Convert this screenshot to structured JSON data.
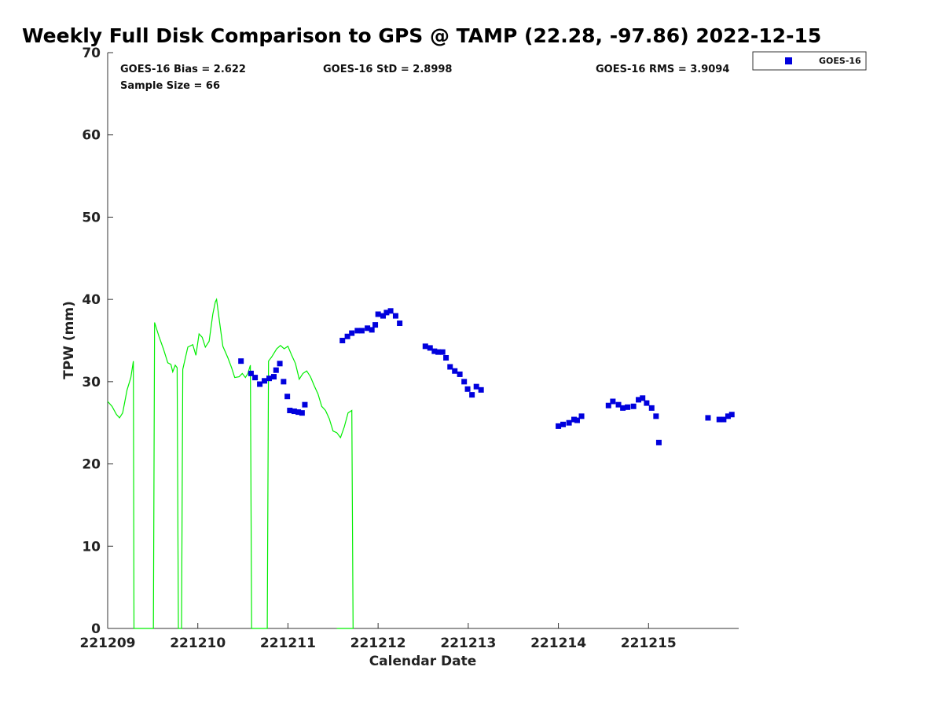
{
  "chart_data": {
    "type": "scatter",
    "title": "Weekly Full Disk Comparison to GPS @ TAMP (22.28, -97.86) 2022-12-15",
    "xlabel": "Calendar Date",
    "ylabel": "TPW (mm)",
    "xlim": [
      "2022-12-09T00:00",
      "2022-12-16T00:00"
    ],
    "ylim": [
      0,
      70
    ],
    "xticks": [
      {
        "date": "2022-12-09T00:00",
        "label": "221209"
      },
      {
        "date": "2022-12-10T00:00",
        "label": "221210"
      },
      {
        "date": "2022-12-11T00:00",
        "label": "221211"
      },
      {
        "date": "2022-12-12T00:00",
        "label": "221212"
      },
      {
        "date": "2022-12-13T00:00",
        "label": "221213"
      },
      {
        "date": "2022-12-14T00:00",
        "label": "221214"
      },
      {
        "date": "2022-12-15T00:00",
        "label": "221215"
      }
    ],
    "yticks": [
      0,
      10,
      20,
      30,
      40,
      50,
      60,
      70
    ],
    "grid": false,
    "legend_position": "top-right",
    "stats": {
      "bias": "GOES-16 Bias = 2.622",
      "std": "GOES-16 StD = 2.8998",
      "rms": "GOES-16 RMS = 3.9094",
      "sample": "Sample Size = 66"
    },
    "series": [
      {
        "kind": "scatter",
        "name": "GOES-16",
        "color": "#0000dd",
        "marker": "square",
        "points": [
          [
            "2022-12-10T11:30",
            32.5
          ],
          [
            "2022-12-10T14:10",
            31.0
          ],
          [
            "2022-12-10T15:15",
            30.5
          ],
          [
            "2022-12-10T16:30",
            29.7
          ],
          [
            "2022-12-10T17:45",
            30.1
          ],
          [
            "2022-12-10T19:00",
            30.4
          ],
          [
            "2022-12-10T20:15",
            30.6
          ],
          [
            "2022-12-10T20:50",
            31.4
          ],
          [
            "2022-12-10T21:50",
            32.2
          ],
          [
            "2022-12-10T22:50",
            30.0
          ],
          [
            "2022-12-10T23:50",
            28.2
          ],
          [
            "2022-12-11T00:30",
            26.5
          ],
          [
            "2022-12-11T01:40",
            26.4
          ],
          [
            "2022-12-11T02:45",
            26.3
          ],
          [
            "2022-12-11T03:45",
            26.2
          ],
          [
            "2022-12-11T04:30",
            27.2
          ],
          [
            "2022-12-11T14:30",
            35.0
          ],
          [
            "2022-12-11T15:50",
            35.5
          ],
          [
            "2022-12-11T17:00",
            35.9
          ],
          [
            "2022-12-11T18:30",
            36.2
          ],
          [
            "2022-12-11T19:40",
            36.2
          ],
          [
            "2022-12-11T21:10",
            36.5
          ],
          [
            "2022-12-11T22:20",
            36.3
          ],
          [
            "2022-12-11T23:15",
            36.9
          ],
          [
            "2022-12-12T00:00",
            38.2
          ],
          [
            "2022-12-12T01:20",
            38.0
          ],
          [
            "2022-12-12T02:15",
            38.4
          ],
          [
            "2022-12-12T03:20",
            38.6
          ],
          [
            "2022-12-12T04:40",
            38.0
          ],
          [
            "2022-12-12T05:45",
            37.1
          ],
          [
            "2022-12-12T12:35",
            34.3
          ],
          [
            "2022-12-12T13:50",
            34.1
          ],
          [
            "2022-12-12T15:00",
            33.7
          ],
          [
            "2022-12-12T16:00",
            33.6
          ],
          [
            "2022-12-12T17:10",
            33.6
          ],
          [
            "2022-12-12T18:05",
            32.9
          ],
          [
            "2022-12-12T19:10",
            31.8
          ],
          [
            "2022-12-12T20:25",
            31.3
          ],
          [
            "2022-12-12T21:45",
            30.9
          ],
          [
            "2022-12-12T22:55",
            30.0
          ],
          [
            "2022-12-12T23:50",
            29.1
          ],
          [
            "2022-12-13T01:00",
            28.4
          ],
          [
            "2022-12-13T02:10",
            29.4
          ],
          [
            "2022-12-13T03:25",
            29.0
          ],
          [
            "2022-12-14T00:00",
            24.6
          ],
          [
            "2022-12-14T01:15",
            24.8
          ],
          [
            "2022-12-14T02:50",
            25.0
          ],
          [
            "2022-12-14T04:10",
            25.4
          ],
          [
            "2022-12-14T05:00",
            25.3
          ],
          [
            "2022-12-14T06:10",
            25.8
          ],
          [
            "2022-12-14T13:20",
            27.1
          ],
          [
            "2022-12-14T14:30",
            27.6
          ],
          [
            "2022-12-14T16:00",
            27.2
          ],
          [
            "2022-12-14T17:10",
            26.8
          ],
          [
            "2022-12-14T18:25",
            26.9
          ],
          [
            "2022-12-14T20:00",
            27.0
          ],
          [
            "2022-12-14T21:20",
            27.8
          ],
          [
            "2022-12-14T22:25",
            28.0
          ],
          [
            "2022-12-14T23:30",
            27.4
          ],
          [
            "2022-12-15T00:50",
            26.8
          ],
          [
            "2022-12-15T02:00",
            25.8
          ],
          [
            "2022-12-15T02:45",
            22.6
          ],
          [
            "2022-12-15T15:50",
            25.6
          ],
          [
            "2022-12-15T18:50",
            25.4
          ],
          [
            "2022-12-15T20:00",
            25.4
          ],
          [
            "2022-12-15T21:10",
            25.8
          ],
          [
            "2022-12-15T22:10",
            26.0
          ]
        ]
      },
      {
        "kind": "line",
        "name": "",
        "color": "#00ee00",
        "points": [
          [
            "2022-12-09T00:00",
            27.6
          ],
          [
            "2022-12-09T01:10",
            27.0
          ],
          [
            "2022-12-09T02:20",
            26.0
          ],
          [
            "2022-12-09T03:10",
            25.6
          ],
          [
            "2022-12-09T04:00",
            26.2
          ],
          [
            "2022-12-09T05:10",
            29.0
          ],
          [
            "2022-12-09T06:10",
            30.5
          ],
          [
            "2022-12-09T06:50",
            32.5
          ],
          [
            "2022-12-09T07:00",
            0.0
          ],
          [
            "2022-12-09T12:10",
            0.0
          ],
          [
            "2022-12-09T12:30",
            37.2
          ],
          [
            "2022-12-09T13:40",
            35.5
          ],
          [
            "2022-12-09T14:50",
            34.0
          ],
          [
            "2022-12-09T16:00",
            32.3
          ],
          [
            "2022-12-09T16:50",
            32.1
          ],
          [
            "2022-12-09T17:20",
            31.2
          ],
          [
            "2022-12-09T18:00",
            32.0
          ],
          [
            "2022-12-09T18:30",
            31.7
          ],
          [
            "2022-12-09T18:50",
            0.0
          ],
          [
            "2022-12-09T19:40",
            0.0
          ],
          [
            "2022-12-09T20:00",
            31.5
          ],
          [
            "2022-12-09T21:20",
            34.2
          ],
          [
            "2022-12-09T22:40",
            34.5
          ],
          [
            "2022-12-09T23:30",
            33.2
          ],
          [
            "2022-12-10T00:20",
            35.8
          ],
          [
            "2022-12-10T01:10",
            35.4
          ],
          [
            "2022-12-10T02:00",
            34.2
          ],
          [
            "2022-12-10T03:00",
            34.9
          ],
          [
            "2022-12-10T04:00",
            38.2
          ],
          [
            "2022-12-10T04:40",
            39.7
          ],
          [
            "2022-12-10T05:00",
            40.0
          ],
          [
            "2022-12-10T05:50",
            37.1
          ],
          [
            "2022-12-10T06:40",
            34.3
          ],
          [
            "2022-12-10T08:00",
            32.9
          ],
          [
            "2022-12-10T09:00",
            31.7
          ],
          [
            "2022-12-10T09:50",
            30.5
          ],
          [
            "2022-12-10T11:00",
            30.6
          ],
          [
            "2022-12-10T11:50",
            31.0
          ],
          [
            "2022-12-10T12:40",
            30.5
          ],
          [
            "2022-12-10T13:20",
            31.0
          ],
          [
            "2022-12-10T14:00",
            32.0
          ],
          [
            "2022-12-10T14:20",
            0.0
          ],
          [
            "2022-12-10T18:30",
            0.0
          ],
          [
            "2022-12-10T18:50",
            32.5
          ],
          [
            "2022-12-10T19:40",
            33.0
          ],
          [
            "2022-12-10T21:00",
            34.0
          ],
          [
            "2022-12-10T22:00",
            34.4
          ],
          [
            "2022-12-10T23:00",
            34.0
          ],
          [
            "2022-12-11T00:00",
            34.3
          ],
          [
            "2022-12-11T01:00",
            33.2
          ],
          [
            "2022-12-11T02:00",
            32.2
          ],
          [
            "2022-12-11T03:00",
            30.3
          ],
          [
            "2022-12-11T04:00",
            31.0
          ],
          [
            "2022-12-11T05:00",
            31.3
          ],
          [
            "2022-12-11T06:00",
            30.6
          ],
          [
            "2022-12-11T07:00",
            29.5
          ],
          [
            "2022-12-11T08:00",
            28.5
          ],
          [
            "2022-12-11T09:00",
            27.0
          ],
          [
            "2022-12-11T10:00",
            26.5
          ],
          [
            "2022-12-11T11:00",
            25.5
          ],
          [
            "2022-12-11T12:00",
            24.0
          ],
          [
            "2022-12-11T13:00",
            23.8
          ],
          [
            "2022-12-11T14:00",
            23.2
          ],
          [
            "2022-12-11T15:00",
            24.5
          ],
          [
            "2022-12-11T16:00",
            26.2
          ],
          [
            "2022-12-11T17:00",
            26.5
          ],
          [
            "2022-12-11T17:20",
            0.0
          ],
          [
            "2022-12-11T13:00",
            0.0
          ]
        ]
      }
    ]
  }
}
